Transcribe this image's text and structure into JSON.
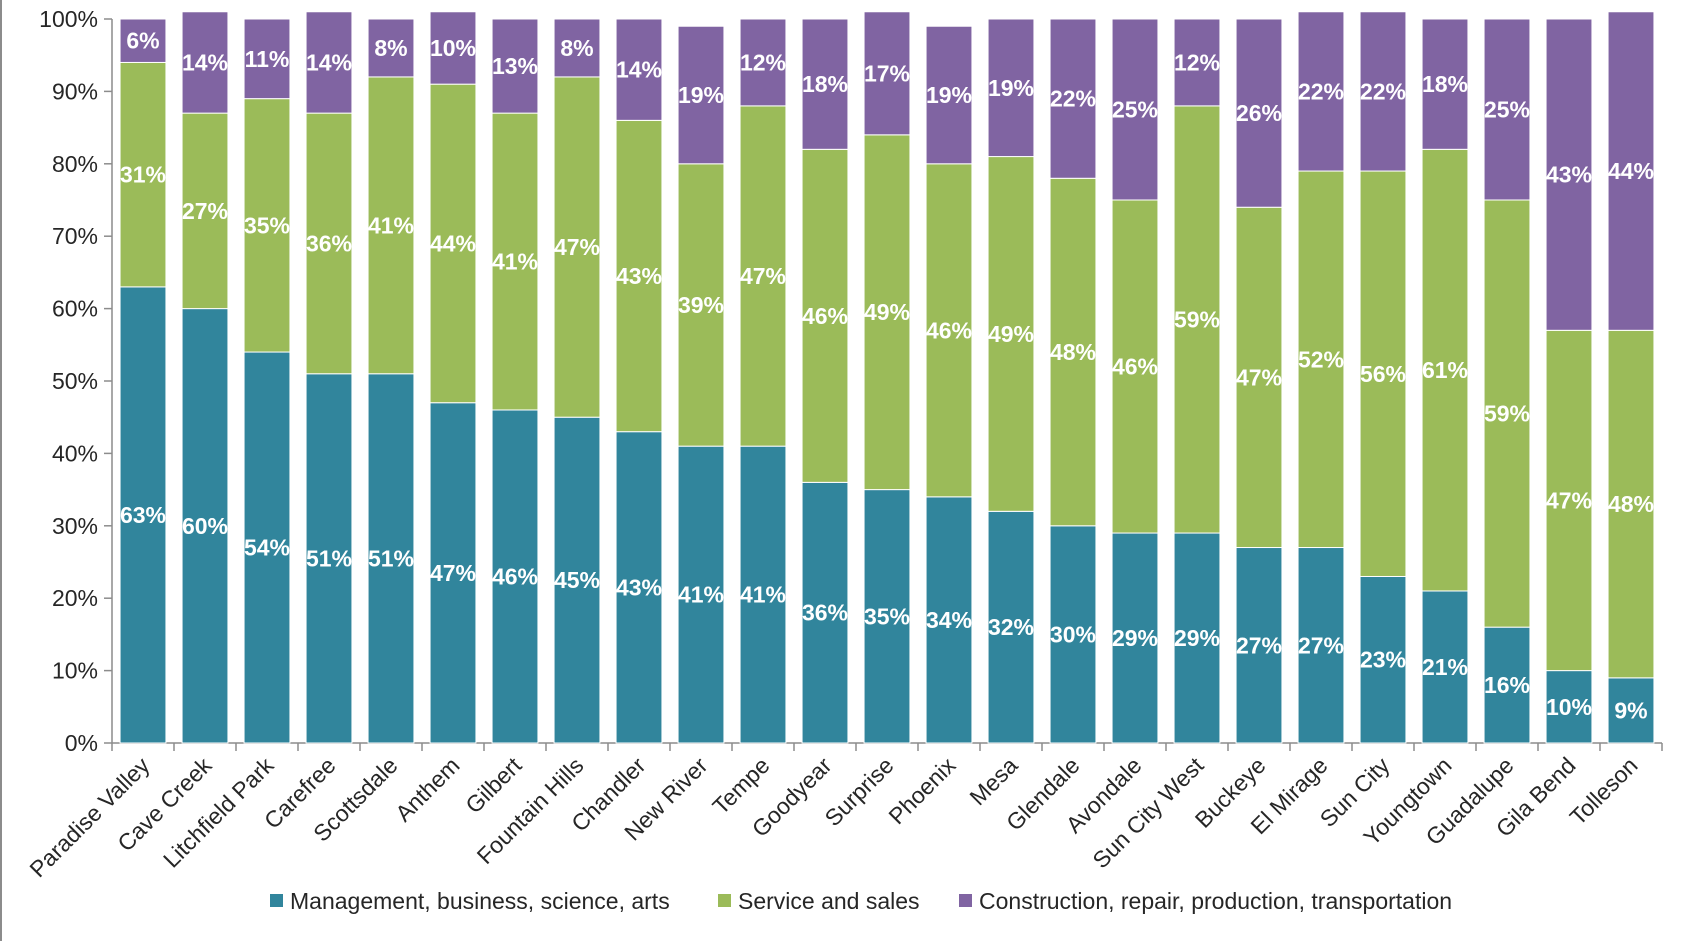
{
  "chart_data": {
    "type": "bar",
    "stacked": true,
    "percent_stacked": true,
    "title": "",
    "xlabel": "",
    "ylabel": "",
    "ylim": [
      0,
      100
    ],
    "y_ticks": [
      "0%",
      "10%",
      "20%",
      "30%",
      "40%",
      "50%",
      "60%",
      "70%",
      "80%",
      "90%",
      "100%"
    ],
    "grid": false,
    "legend_position": "bottom",
    "categories": [
      "Paradise Valley",
      "Cave Creek",
      "Litchfield Park",
      "Carefree",
      "Scottsdale",
      "Anthem",
      "Gilbert",
      "Fountain Hills",
      "Chandler",
      "New River",
      "Tempe",
      "Goodyear",
      "Surprise",
      "Phoenix",
      "Mesa",
      "Glendale",
      "Avondale",
      "Sun City West",
      "Buckeye",
      "El Mirage",
      "Sun City",
      "Youngtown",
      "Guadalupe",
      "Gila Bend",
      "Tolleson"
    ],
    "series": [
      {
        "name": "Management, business, science, arts",
        "color": "#31859c",
        "values": [
          63,
          60,
          54,
          51,
          51,
          47,
          46,
          45,
          43,
          41,
          41,
          36,
          35,
          34,
          32,
          30,
          29,
          29,
          27,
          27,
          23,
          21,
          16,
          10,
          9
        ],
        "labels": [
          "63%",
          "60%",
          "54%",
          "51%",
          "51%",
          "47%",
          "46%",
          "45%",
          "43%",
          "41%",
          "41%",
          "36%",
          "35%",
          "34%",
          "32%",
          "30%",
          "29%",
          "29%",
          "27%",
          "27%",
          "23%",
          "21%",
          "16%",
          "10%",
          "9%"
        ]
      },
      {
        "name": "Service and sales",
        "color": "#9bbb59",
        "values": [
          31,
          27,
          35,
          36,
          41,
          44,
          41,
          47,
          43,
          39,
          47,
          46,
          49,
          46,
          49,
          48,
          46,
          59,
          47,
          52,
          56,
          61,
          59,
          47,
          48
        ],
        "labels": [
          "31%",
          "27%",
          "35%",
          "36%",
          "41%",
          "44%",
          "41%",
          "47%",
          "43%",
          "39%",
          "47%",
          "46%",
          "49%",
          "46%",
          "49%",
          "48%",
          "46%",
          "59%",
          "47%",
          "52%",
          "56%",
          "61%",
          "59%",
          "47%",
          "48%"
        ]
      },
      {
        "name": "Construction, repair, production, transportation",
        "color": "#8064a2",
        "values": [
          6,
          14,
          11,
          14,
          8,
          10,
          13,
          8,
          14,
          19,
          12,
          18,
          17,
          19,
          19,
          22,
          25,
          12,
          26,
          22,
          22,
          18,
          25,
          43,
          44
        ],
        "labels": [
          "6%",
          "14%",
          "11%",
          "14%",
          "8%",
          "10%",
          "13%",
          "8%",
          "14%",
          "19%",
          "12%",
          "18%",
          "17%",
          "19%",
          "19%",
          "22%",
          "25%",
          "12%",
          "26%",
          "22%",
          "22%",
          "18%",
          "25%",
          "43%",
          "44%"
        ]
      }
    ]
  }
}
